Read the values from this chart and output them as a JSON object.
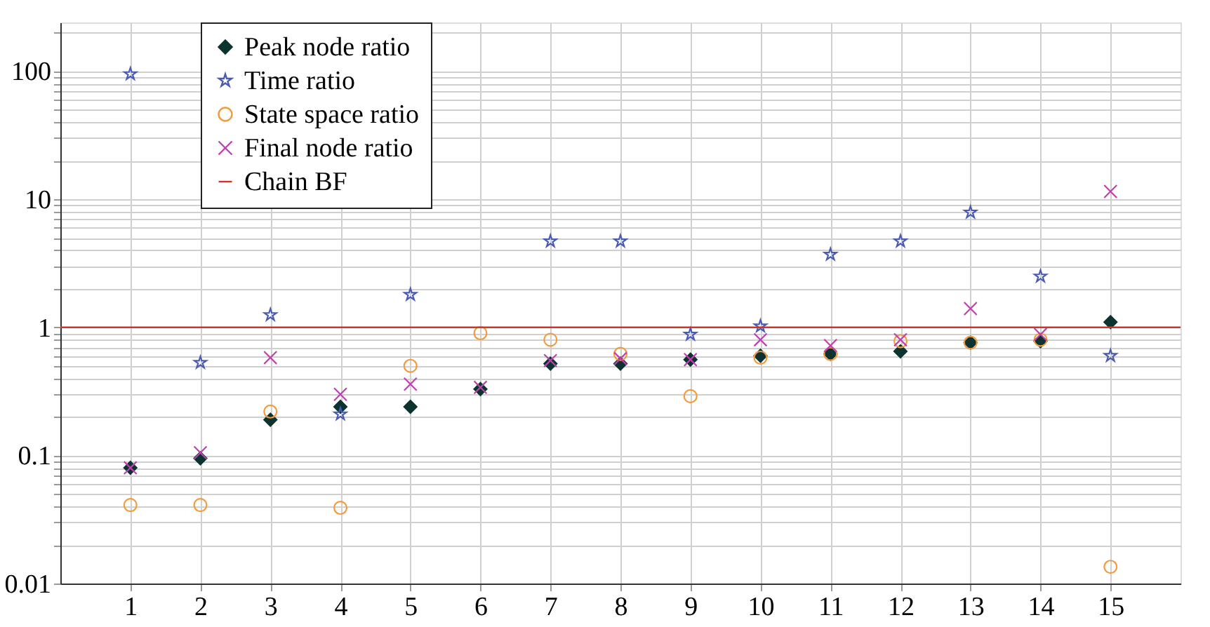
{
  "chart_data": {
    "type": "scatter",
    "x": [
      1,
      2,
      3,
      4,
      5,
      6,
      7,
      8,
      9,
      10,
      11,
      12,
      13,
      14,
      15
    ],
    "xlim": [
      0,
      16
    ],
    "xticks": [
      1,
      2,
      3,
      4,
      5,
      6,
      7,
      8,
      9,
      10,
      11,
      12,
      13,
      14,
      15
    ],
    "log": "y",
    "ylim": [
      0.01,
      240
    ],
    "yticks": [
      0.01,
      {
        "value": 0.02,
        "label": null
      },
      {
        "value": 0.03,
        "label": null
      },
      {
        "value": 0.04,
        "label": null
      },
      {
        "value": 0.05,
        "label": null
      },
      {
        "value": 0.06,
        "label": null
      },
      {
        "value": 0.07,
        "label": null
      },
      {
        "value": 0.08,
        "label": null
      },
      {
        "value": 0.09,
        "label": null
      },
      0.1,
      {
        "value": 0.2,
        "label": null
      },
      {
        "value": 0.3,
        "label": null
      },
      {
        "value": 0.4,
        "label": null
      },
      {
        "value": 0.5,
        "label": null
      },
      {
        "value": 0.6,
        "label": null
      },
      {
        "value": 0.7,
        "label": null
      },
      {
        "value": 0.8,
        "label": null
      },
      {
        "value": 0.9,
        "label": null
      },
      1,
      {
        "value": 2,
        "label": null
      },
      {
        "value": 3,
        "label": null
      },
      {
        "value": 4,
        "label": null
      },
      {
        "value": 5,
        "label": null
      },
      {
        "value": 6,
        "label": null
      },
      {
        "value": 7,
        "label": null
      },
      {
        "value": 8,
        "label": null
      },
      {
        "value": 9,
        "label": null
      },
      10,
      {
        "value": 20,
        "label": null
      },
      {
        "value": 30,
        "label": null
      },
      {
        "value": 40,
        "label": null
      },
      {
        "value": 50,
        "label": null
      },
      {
        "value": 60,
        "label": null
      },
      {
        "value": 70,
        "label": null
      },
      {
        "value": 80,
        "label": null
      },
      {
        "value": 90,
        "label": null
      },
      100,
      {
        "value": 200,
        "label": null
      }
    ],
    "grid": true,
    "legend": "top left",
    "series": [
      {
        "name": "Peak node ratio",
        "color": "#0d3331",
        "marker": "diamond",
        "values": [
          0.08,
          0.095,
          0.19,
          0.24,
          0.24,
          0.33,
          0.52,
          0.52,
          0.56,
          0.6,
          0.62,
          0.65,
          0.76,
          0.78,
          1.1
        ]
      },
      {
        "name": "Time ratio",
        "color": "#4a5bb5",
        "marker": "star",
        "values": [
          95,
          0.53,
          1.25,
          0.21,
          1.8,
          null,
          4.7,
          4.7,
          0.88,
          1.02,
          3.7,
          4.7,
          7.9,
          2.5,
          0.6
        ]
      },
      {
        "name": "State space ratio",
        "color": "#f39a3d",
        "marker": "circle",
        "values": [
          0.041,
          0.041,
          0.22,
          0.039,
          0.5,
          0.9,
          0.8,
          0.62,
          0.29,
          0.58,
          0.62,
          0.78,
          0.76,
          0.8,
          0.0135
        ]
      },
      {
        "name": "Final node ratio",
        "color": "#c040b0",
        "marker": "cross",
        "values": [
          0.08,
          0.105,
          0.58,
          0.3,
          0.36,
          0.34,
          0.55,
          0.57,
          0.56,
          0.8,
          0.72,
          0.8,
          1.4,
          0.88,
          11.5
        ]
      }
    ],
    "ref_lines": [
      {
        "axis": "y",
        "value": 1,
        "label": "Chain BF",
        "color": "#d9302b"
      }
    ]
  }
}
